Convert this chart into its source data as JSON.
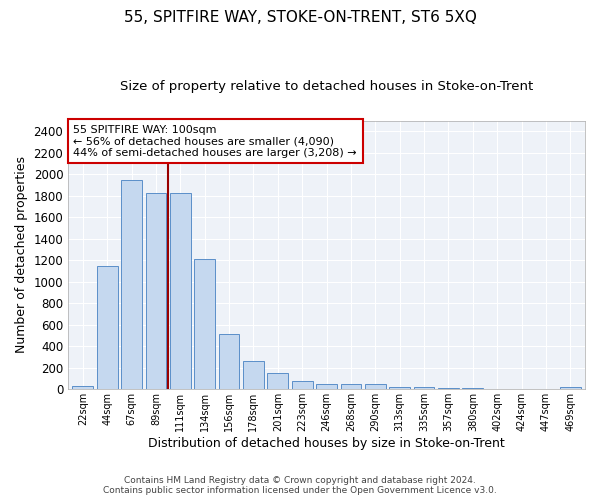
{
  "title": "55, SPITFIRE WAY, STOKE-ON-TRENT, ST6 5XQ",
  "subtitle": "Size of property relative to detached houses in Stoke-on-Trent",
  "xlabel": "Distribution of detached houses by size in Stoke-on-Trent",
  "ylabel": "Number of detached properties",
  "categories": [
    "22sqm",
    "44sqm",
    "67sqm",
    "89sqm",
    "111sqm",
    "134sqm",
    "156sqm",
    "178sqm",
    "201sqm",
    "223sqm",
    "246sqm",
    "268sqm",
    "290sqm",
    "313sqm",
    "335sqm",
    "357sqm",
    "380sqm",
    "402sqm",
    "424sqm",
    "447sqm",
    "469sqm"
  ],
  "values": [
    30,
    1150,
    1950,
    1830,
    1830,
    1215,
    515,
    265,
    150,
    80,
    50,
    45,
    45,
    20,
    20,
    15,
    10,
    5,
    5,
    5,
    20
  ],
  "bar_color": "#c5d8ef",
  "bar_edge_color": "#5b8fc9",
  "vline_color": "#990000",
  "annotation_line1": "55 SPITFIRE WAY: 100sqm",
  "annotation_line2": "← 56% of detached houses are smaller (4,090)",
  "annotation_line3": "44% of semi-detached houses are larger (3,208) →",
  "annotation_box_color": "#ffffff",
  "annotation_box_edge_color": "#cc0000",
  "footer_line1": "Contains HM Land Registry data © Crown copyright and database right 2024.",
  "footer_line2": "Contains public sector information licensed under the Open Government Licence v3.0.",
  "ylim": [
    0,
    2500
  ],
  "yticks": [
    0,
    200,
    400,
    600,
    800,
    1000,
    1200,
    1400,
    1600,
    1800,
    2000,
    2200,
    2400
  ],
  "background_color": "#eef2f8",
  "grid_color": "#ffffff",
  "title_fontsize": 11,
  "subtitle_fontsize": 9.5,
  "ylabel_fontsize": 9,
  "xlabel_fontsize": 9
}
